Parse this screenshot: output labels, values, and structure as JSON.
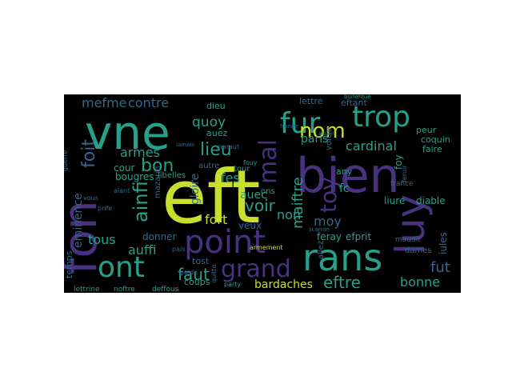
{
  "wordcloud": {
    "background": "#000000",
    "palette": {
      "teal": "#27a08a",
      "yellow": "#c8df2c",
      "purple": "#3f3d8a",
      "blue": "#3b6ea3",
      "indigo": "#46327e",
      "green": "#5ec962",
      "cyan": "#1f9e89",
      "lime": "#a5db36",
      "deep": "#31688e",
      "dark": "#2c4f7e"
    },
    "words": [
      {
        "text": "eft",
        "color": "yellow"
      },
      {
        "text": "bien",
        "color": "indigo"
      },
      {
        "text": "vne",
        "color": "teal"
      },
      {
        "text": "fon",
        "color": "indigo"
      },
      {
        "text": "luy",
        "color": "indigo"
      },
      {
        "text": "point",
        "color": "indigo"
      },
      {
        "text": "rans",
        "color": "teal"
      },
      {
        "text": "ont",
        "color": "teal"
      },
      {
        "text": "fur",
        "color": "teal"
      },
      {
        "text": "trop",
        "color": "teal"
      },
      {
        "text": "mal",
        "color": "indigo"
      },
      {
        "text": "grand",
        "color": "indigo"
      },
      {
        "text": "toy",
        "color": "indigo"
      },
      {
        "text": "nom",
        "color": "yellow"
      },
      {
        "text": "lieu",
        "color": "teal"
      },
      {
        "text": "bon",
        "color": "teal"
      },
      {
        "text": "voir",
        "color": "teal"
      },
      {
        "text": "eftre",
        "color": "teal"
      },
      {
        "text": "faut",
        "color": "teal"
      },
      {
        "text": "ainfi",
        "color": "teal"
      },
      {
        "text": "foit",
        "color": "deep"
      },
      {
        "text": "mefme",
        "color": "deep"
      },
      {
        "text": "contre",
        "color": "deep"
      },
      {
        "text": "quoy",
        "color": "teal"
      },
      {
        "text": "maiftre",
        "color": "teal"
      },
      {
        "text": "fut",
        "color": "deep"
      },
      {
        "text": "bonne",
        "color": "teal"
      },
      {
        "text": "armes",
        "color": "teal"
      },
      {
        "text": "cardinal",
        "color": "teal"
      },
      {
        "text": "paris",
        "color": "teal"
      },
      {
        "text": "moy",
        "color": "deep"
      },
      {
        "text": "non",
        "color": "teal"
      },
      {
        "text": "fort",
        "color": "yellow"
      },
      {
        "text": "auffi",
        "color": "teal"
      },
      {
        "text": "tous",
        "color": "teal"
      },
      {
        "text": "eminence",
        "color": "deep"
      },
      {
        "text": "gloire",
        "color": "deep"
      },
      {
        "text": "auec",
        "color": "teal"
      },
      {
        "text": "fes",
        "color": "teal"
      },
      {
        "text": "fc",
        "color": "teal"
      },
      {
        "text": "bardaches",
        "color": "yellow"
      },
      {
        "text": "donner",
        "color": "deep"
      },
      {
        "text": "veux",
        "color": "deep"
      },
      {
        "text": "iules",
        "color": "deep"
      },
      {
        "text": "liure",
        "color": "teal"
      },
      {
        "text": "diable",
        "color": "teal"
      },
      {
        "text": "feray",
        "color": "teal"
      },
      {
        "text": "efprit",
        "color": "teal"
      },
      {
        "text": "lettre",
        "color": "deep"
      },
      {
        "text": "dieu",
        "color": "teal"
      },
      {
        "text": "cour",
        "color": "teal"
      },
      {
        "text": "temps",
        "color": "deep"
      },
      {
        "text": "bougres",
        "color": "teal"
      },
      {
        "text": "coups",
        "color": "teal"
      },
      {
        "text": "tost",
        "color": "deep"
      },
      {
        "text": "auez",
        "color": "teal"
      },
      {
        "text": "eftant",
        "color": "deep"
      },
      {
        "text": "mazarin",
        "color": "deep"
      },
      {
        "text": "peur",
        "color": "teal"
      },
      {
        "text": "coquin",
        "color": "teal"
      },
      {
        "text": "lettrine",
        "color": "teal"
      },
      {
        "text": "noftre",
        "color": "teal"
      },
      {
        "text": "deffous",
        "color": "teal"
      },
      {
        "text": "libelles",
        "color": "teal"
      },
      {
        "text": "autre",
        "color": "deep"
      },
      {
        "text": "ons",
        "color": "teal"
      },
      {
        "text": "tour",
        "color": "teal"
      },
      {
        "text": "faire",
        "color": "teal"
      },
      {
        "text": "any",
        "color": "teal"
      },
      {
        "text": "france",
        "color": "deep"
      },
      {
        "text": "allez",
        "color": "deep"
      },
      {
        "text": "dames",
        "color": "deep"
      },
      {
        "text": "foy",
        "color": "teal"
      },
      {
        "text": "voftre",
        "color": "deep"
      },
      {
        "text": "maudit",
        "color": "deep"
      },
      {
        "text": "armement",
        "color": "yellow"
      },
      {
        "text": "party",
        "color": "teal"
      },
      {
        "text": "burlefque",
        "color": "teal"
      },
      {
        "text": "prife",
        "color": "deep"
      },
      {
        "text": "fouy",
        "color": "teal"
      },
      {
        "text": "guerre",
        "color": "deep"
      },
      {
        "text": "maraut",
        "color": "deep"
      },
      {
        "text": "aiant",
        "color": "deep"
      },
      {
        "text": "vous",
        "color": "deep"
      },
      {
        "text": "pais",
        "color": "deep"
      },
      {
        "text": "auoir",
        "color": "deep"
      },
      {
        "text": "feruir",
        "color": "deep"
      },
      {
        "text": "scarron",
        "color": "deep"
      },
      {
        "text": "garde",
        "color": "deep"
      },
      {
        "text": "quitte",
        "color": "deep"
      },
      {
        "text": "fronde",
        "color": "deep"
      },
      {
        "text": "iamais",
        "color": "deep"
      }
    ]
  }
}
